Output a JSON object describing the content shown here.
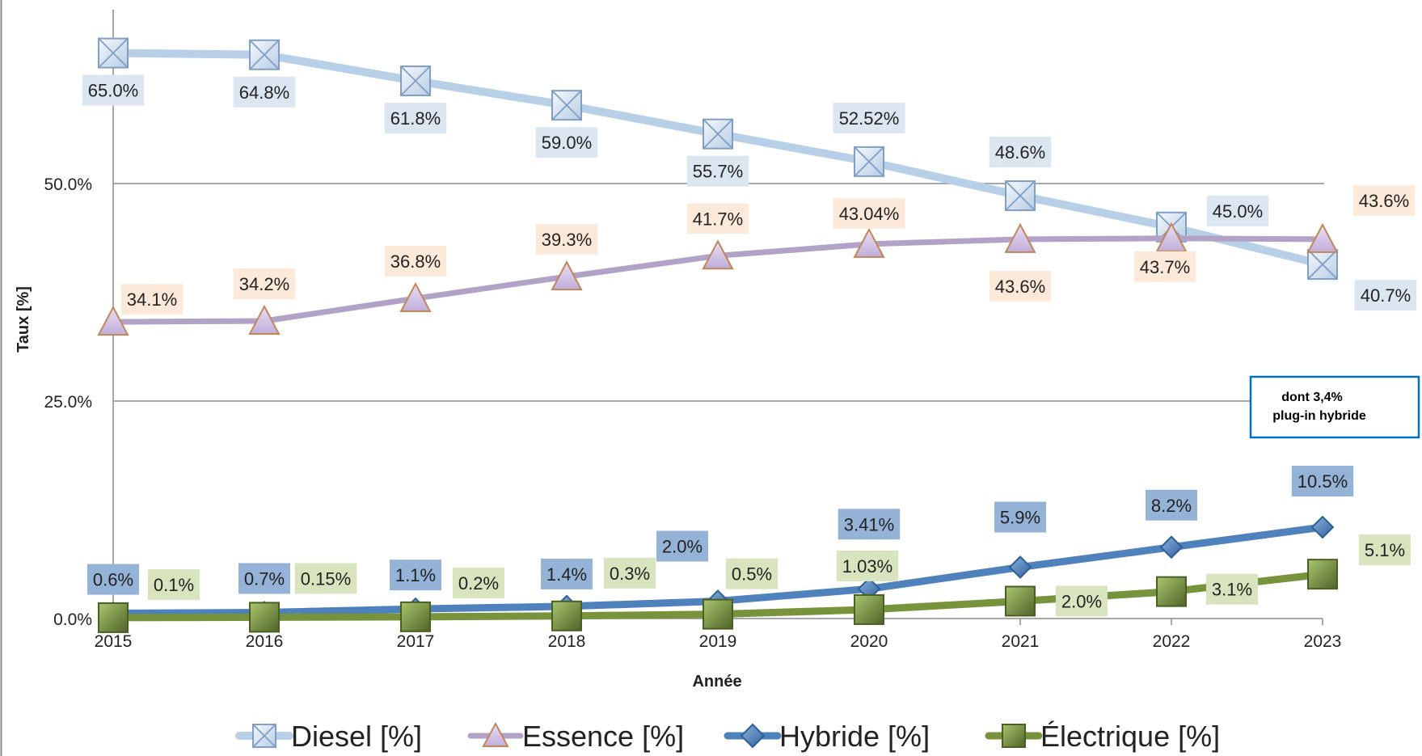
{
  "chart_data": {
    "type": "line",
    "title": "",
    "xlabel": "Année",
    "ylabel": "Taux [%]",
    "x": [
      "2015",
      "2016",
      "2017",
      "2018",
      "2019",
      "2020",
      "2021",
      "2022",
      "2023"
    ],
    "ylim": [
      0,
      70
    ],
    "yticks": [
      0,
      25,
      50
    ],
    "ytick_labels": [
      "0.0%",
      "25.0%",
      "50.0%"
    ],
    "grid": true,
    "legend_position": "bottom",
    "series": [
      {
        "name": "Diesel [%]",
        "values": [
          65.0,
          64.8,
          61.8,
          59.0,
          55.7,
          52.52,
          48.6,
          45.0,
          40.7
        ],
        "labels": [
          "65.0%",
          "64.8%",
          "61.8%",
          "59.0%",
          "55.7%",
          "52.52%",
          "48.6%",
          "45.0%",
          "40.7%"
        ],
        "line_color": "#b8cfe8",
        "marker": "square-x",
        "label_bg": "#dce6f1"
      },
      {
        "name": "Essence [%]",
        "values": [
          34.1,
          34.2,
          36.8,
          39.3,
          41.7,
          43.04,
          43.6,
          43.7,
          43.6
        ],
        "labels": [
          "34.1%",
          "34.2%",
          "36.8%",
          "39.3%",
          "41.7%",
          "43.04%",
          "43.6%",
          "43.7%",
          "43.6%"
        ],
        "line_color": "#b3a2c7",
        "marker": "triangle",
        "label_bg": "#fde9d9"
      },
      {
        "name": "Hybride [%]",
        "values": [
          0.6,
          0.7,
          1.1,
          1.4,
          2.0,
          3.41,
          5.9,
          8.2,
          10.5
        ],
        "labels": [
          "0.6%",
          "0.7%",
          "1.1%",
          "1.4%",
          "2.0%",
          "3.41%",
          "5.9%",
          "8.2%",
          "10.5%"
        ],
        "line_color": "#4f81bd",
        "marker": "diamond",
        "label_bg": "#95b3d7"
      },
      {
        "name": "Électrique [%]",
        "values": [
          0.1,
          0.15,
          0.2,
          0.3,
          0.5,
          1.03,
          2.0,
          3.1,
          5.1
        ],
        "labels": [
          "0.1%",
          "0.15%",
          "0.2%",
          "0.3%",
          "0.5%",
          "1.03%",
          "2.0%",
          "3.1%",
          "5.1%"
        ],
        "line_color": "#77933c",
        "marker": "square",
        "label_bg": "#d7e4bd"
      }
    ],
    "annotations": [
      {
        "text_lines": [
          "dont 3,4%",
          "plug-in hybride"
        ],
        "border_color": "#0070c0"
      }
    ]
  }
}
